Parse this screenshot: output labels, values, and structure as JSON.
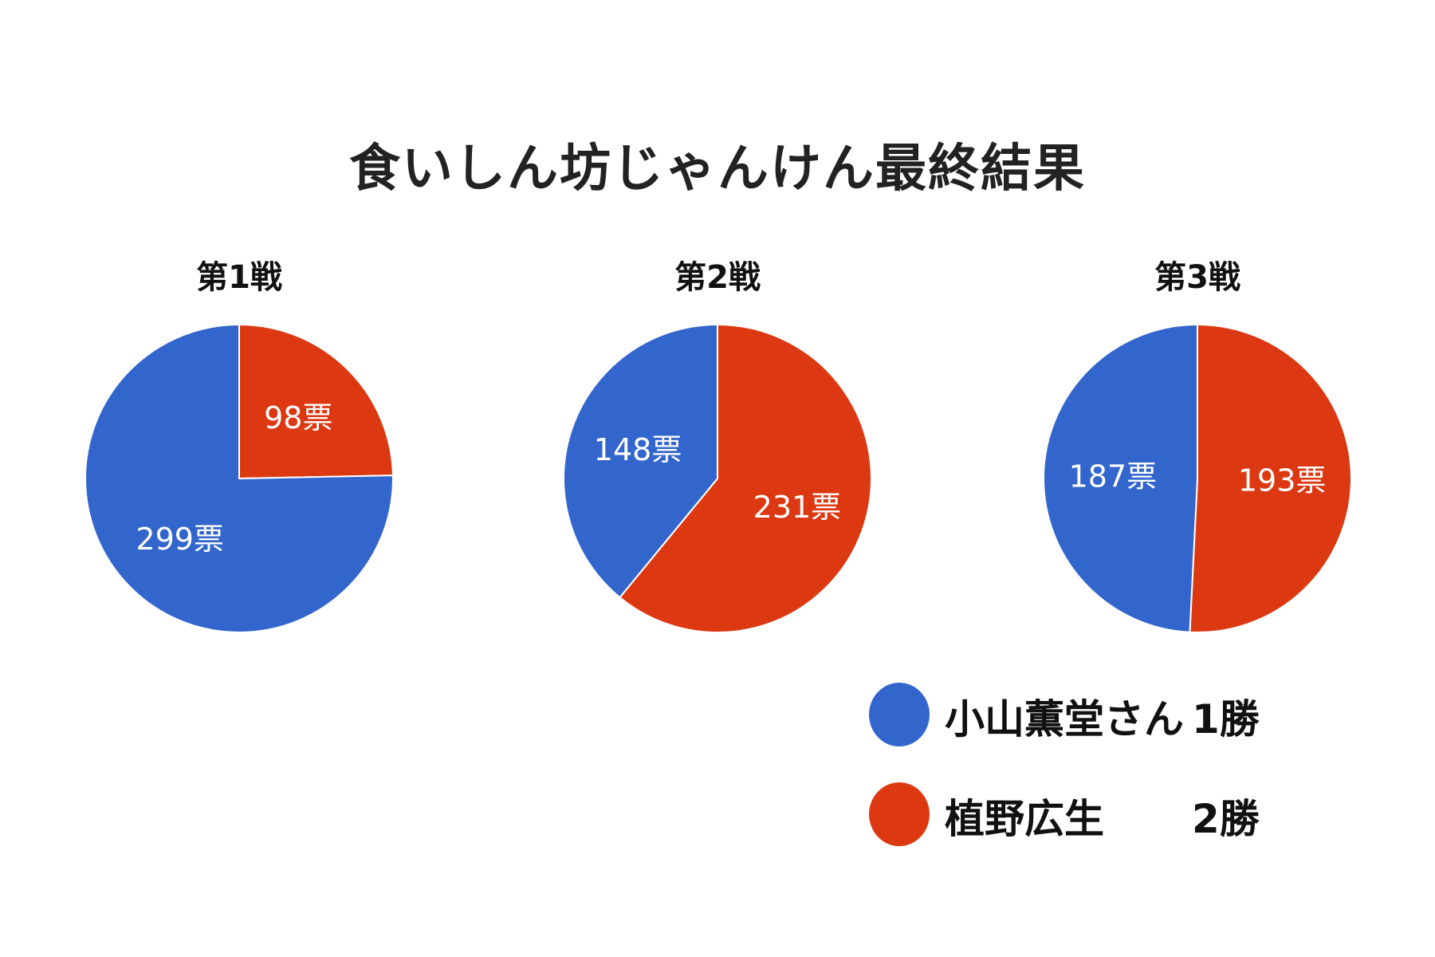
{
  "title": "食いしん坊じゃんけん最終結果",
  "colors": {
    "koyama": "#3366CC",
    "ueno": "#DC3912"
  },
  "legend": [
    {
      "name": "小山薫堂さん",
      "wins": "1勝",
      "color": "#3366CC"
    },
    {
      "name": "植野広生",
      "wins": "2勝",
      "color": "#DC3912"
    }
  ],
  "pies": [
    {
      "title": "第1戦",
      "slices": [
        {
          "label": "98票",
          "value": 98,
          "color": "#DC3912"
        },
        {
          "label": "299票",
          "value": 299,
          "color": "#3366CC"
        }
      ]
    },
    {
      "title": "第2戦",
      "slices": [
        {
          "label": "231票",
          "value": 231,
          "color": "#DC3912"
        },
        {
          "label": "148票",
          "value": 148,
          "color": "#3366CC"
        }
      ]
    },
    {
      "title": "第3戦",
      "slices": [
        {
          "label": "193票",
          "value": 193,
          "color": "#DC3912"
        },
        {
          "label": "187票",
          "value": 187,
          "color": "#3366CC"
        }
      ]
    }
  ],
  "chart_data": [
    {
      "type": "pie",
      "title": "第1戦",
      "categories": [
        "植野広生",
        "小山薫堂さん"
      ],
      "values": [
        98,
        299
      ],
      "labels": [
        "98票",
        "299票"
      ],
      "colors": [
        "#DC3912",
        "#3366CC"
      ]
    },
    {
      "type": "pie",
      "title": "第2戦",
      "categories": [
        "植野広生",
        "小山薫堂さん"
      ],
      "values": [
        231,
        148
      ],
      "labels": [
        "231票",
        "148票"
      ],
      "colors": [
        "#DC3912",
        "#3366CC"
      ]
    },
    {
      "type": "pie",
      "title": "第3戦",
      "categories": [
        "植野広生",
        "小山薫堂さん"
      ],
      "values": [
        193,
        187
      ],
      "labels": [
        "193票",
        "187票"
      ],
      "colors": [
        "#DC3912",
        "#3366CC"
      ]
    }
  ],
  "overall_title": "食いしん坊じゃんけん最終結果",
  "legend_position": "bottom-right"
}
